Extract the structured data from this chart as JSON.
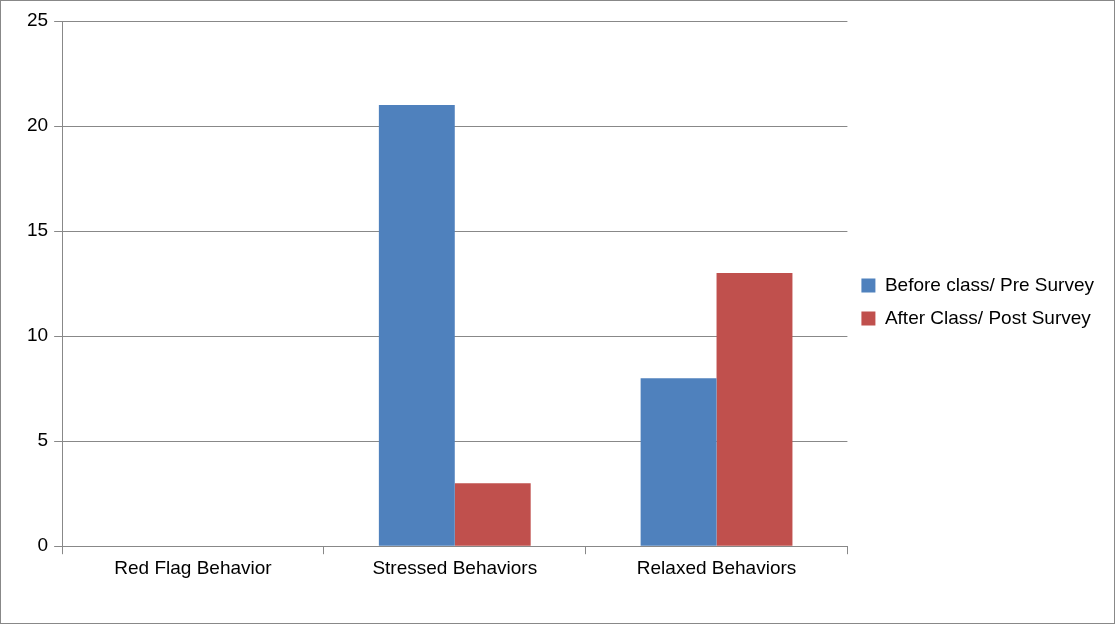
{
  "chart_data": {
    "type": "bar",
    "categories": [
      "Red Flag Behavior",
      "Stressed Behaviors",
      "Relaxed Behaviors"
    ],
    "series": [
      {
        "name": "Before class/ Pre Survey",
        "color": "#4f81bd",
        "values": [
          0,
          21,
          8
        ]
      },
      {
        "name": "After Class/ Post Survey",
        "color": "#c0504d",
        "values": [
          0,
          3,
          13
        ]
      }
    ],
    "ylim": [
      0,
      25
    ],
    "yticks": [
      0,
      5,
      10,
      15,
      20,
      25
    ],
    "grid": "y",
    "legend": "right"
  }
}
